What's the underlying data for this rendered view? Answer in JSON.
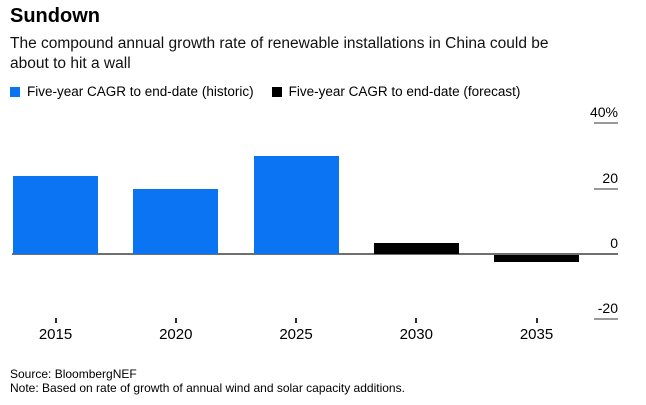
{
  "header": {
    "title": "Sundown",
    "subtitle": "The compound annual growth rate of renewable installations in China could be about to hit a wall"
  },
  "legend": {
    "items": [
      {
        "label": "Five-year CAGR to end-date (historic)",
        "color": "#0a74f2"
      },
      {
        "label": "Five-year CAGR to end-date (forecast)",
        "color": "#000000"
      }
    ]
  },
  "chart_data": {
    "type": "bar",
    "title": "Sundown",
    "subtitle": "The compound annual growth rate of renewable installations in China could be about to hit a wall",
    "categories": [
      "2015",
      "2020",
      "2025",
      "2030",
      "2035"
    ],
    "series": [
      {
        "name": "Five-year CAGR to end-date (historic)",
        "color": "#0a74f2",
        "values": [
          24,
          20,
          30,
          null,
          null
        ]
      },
      {
        "name": "Five-year CAGR to end-date (forecast)",
        "color": "#000000",
        "values": [
          null,
          null,
          null,
          3.5,
          -2
        ]
      }
    ],
    "unit": "%",
    "xlabel": "",
    "ylabel": "",
    "y_ticks": [
      {
        "value": 40,
        "label": "40%"
      },
      {
        "value": 20,
        "label": "20"
      },
      {
        "value": 0,
        "label": "0"
      },
      {
        "value": -20,
        "label": "-20"
      }
    ],
    "ylim": [
      -25,
      44
    ],
    "grid": "none",
    "legend_position": "top",
    "baseline": 0
  },
  "footer": {
    "source": "Source: BloombergNEF",
    "note": "Note: Based on rate of growth of annual wind and solar capacity additions."
  }
}
